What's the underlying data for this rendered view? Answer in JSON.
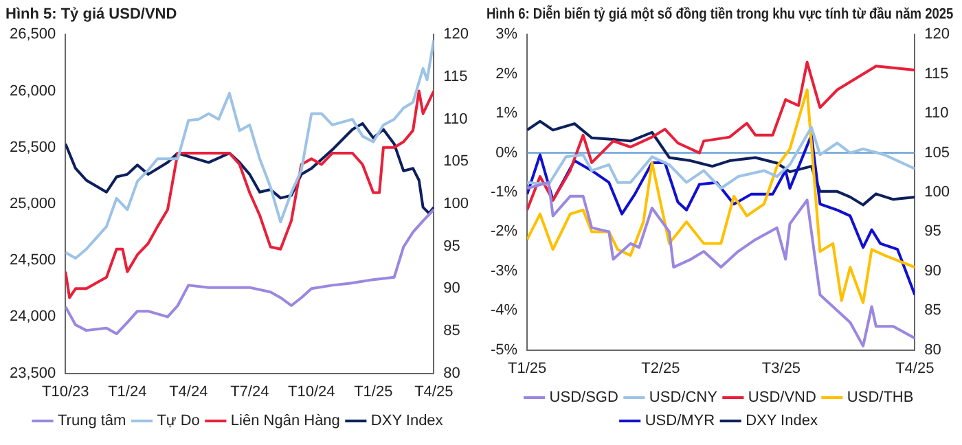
{
  "chart_data": [
    {
      "type": "line",
      "title": "Hình 5: Tỷ giá USD/VND",
      "legend": "bottom",
      "xlim": [
        "2023-10",
        "2025-04"
      ],
      "xticks": [
        {
          "value": "2023-10",
          "label": "T10/23"
        },
        {
          "value": "2024-01",
          "label": "T1/24"
        },
        {
          "value": "2024-04",
          "label": "T4/24"
        },
        {
          "value": "2024-07",
          "label": "T7/24"
        },
        {
          "value": "2024-10",
          "label": "T10/24"
        },
        {
          "value": "2025-01",
          "label": "T1/25"
        },
        {
          "value": "2025-04",
          "label": "T4/25"
        }
      ],
      "ylim": [
        23500,
        26500
      ],
      "yticks": [
        {
          "value": 23500,
          "label": "23,500"
        },
        {
          "value": 24000,
          "label": "24,000"
        },
        {
          "value": 24500,
          "label": "24,500"
        },
        {
          "value": 25000,
          "label": "25,000"
        },
        {
          "value": 25500,
          "label": "25,500"
        },
        {
          "value": 26000,
          "label": "26,000"
        },
        {
          "value": 26500,
          "label": "26,500"
        }
      ],
      "y2lim": [
        80,
        120
      ],
      "y2ticks": [
        80,
        85,
        90,
        95,
        100,
        105,
        110,
        115,
        120
      ],
      "series": [
        {
          "name": "Trung tâm",
          "color": "#9b87e0",
          "x": [
            "2023-10-01",
            "2023-10-16",
            "2023-11-01",
            "2023-12-01",
            "2023-12-16",
            "2024-01-01",
            "2024-01-16",
            "2024-02-01",
            "2024-03-01",
            "2024-03-16",
            "2024-04-01",
            "2024-05-01",
            "2024-06-01",
            "2024-07-01",
            "2024-08-01",
            "2024-08-16",
            "2024-09-01",
            "2024-09-16",
            "2024-10-01",
            "2024-11-01",
            "2024-12-01",
            "2025-01-01",
            "2025-02-01",
            "2025-02-15",
            "2025-03-01",
            "2025-03-16",
            "2025-04-01"
          ],
          "values": [
            24090,
            23930,
            23880,
            23900,
            23850,
            23950,
            24050,
            24050,
            24000,
            24100,
            24280,
            24260,
            24260,
            24260,
            24220,
            24170,
            24100,
            24170,
            24250,
            24280,
            24300,
            24330,
            24350,
            24620,
            24750,
            24850,
            24950
          ]
        },
        {
          "name": "Tự Do",
          "color": "#9dc3e6",
          "x": [
            "2023-10-01",
            "2023-10-07",
            "2023-10-16",
            "2023-11-01",
            "2023-11-16",
            "2023-12-01",
            "2023-12-16",
            "2024-01-01",
            "2024-01-16",
            "2024-02-01",
            "2024-02-15",
            "2024-03-16",
            "2024-04-01",
            "2024-04-16",
            "2024-05-01",
            "2024-05-16",
            "2024-06-01",
            "2024-06-16",
            "2024-07-01",
            "2024-07-16",
            "2024-08-01",
            "2024-08-16",
            "2024-09-01",
            "2024-09-16",
            "2024-10-01",
            "2024-10-16",
            "2024-11-01",
            "2024-12-01",
            "2024-12-16",
            "2025-01-01",
            "2025-01-16",
            "2025-02-01",
            "2025-02-15",
            "2025-03-01",
            "2025-03-16",
            "2025-03-22",
            "2025-04-01"
          ],
          "values": [
            24570,
            24550,
            24520,
            24600,
            24700,
            24800,
            25050,
            24950,
            25200,
            25300,
            25400,
            25400,
            25740,
            25750,
            25800,
            25750,
            25980,
            25650,
            25700,
            25400,
            25150,
            24840,
            25100,
            25300,
            25800,
            25800,
            25700,
            25750,
            25600,
            25550,
            25700,
            25750,
            25850,
            25900,
            26200,
            26100,
            26450
          ]
        },
        {
          "name": "Liên Ngân Hàng",
          "color": "#e8203a",
          "x": [
            "2023-10-01",
            "2023-10-07",
            "2023-10-16",
            "2023-11-01",
            "2023-11-16",
            "2023-12-01",
            "2023-12-16",
            "2023-12-25",
            "2024-01-01",
            "2024-01-16",
            "2024-02-01",
            "2024-02-15",
            "2024-03-01",
            "2024-03-16",
            "2024-04-01",
            "2024-05-01",
            "2024-06-01",
            "2024-06-16",
            "2024-07-01",
            "2024-07-16",
            "2024-08-01",
            "2024-08-16",
            "2024-09-01",
            "2024-09-16",
            "2024-10-01",
            "2024-10-16",
            "2024-11-01",
            "2024-12-01",
            "2024-12-16",
            "2025-01-01",
            "2025-01-10",
            "2025-01-16",
            "2025-02-01",
            "2025-02-15",
            "2025-03-01",
            "2025-03-10",
            "2025-03-16",
            "2025-04-01"
          ],
          "values": [
            24400,
            24170,
            24250,
            24250,
            24300,
            24350,
            24600,
            24600,
            24400,
            24550,
            24650,
            24800,
            24950,
            25450,
            25450,
            25450,
            25450,
            25350,
            25100,
            24900,
            24620,
            24600,
            24850,
            25350,
            25400,
            25350,
            25450,
            25450,
            25350,
            25100,
            25100,
            25500,
            25500,
            25550,
            25650,
            26000,
            25800,
            26000
          ]
        },
        {
          "name": "DXY Index",
          "color": "#0d1f5c",
          "axis": "y2",
          "x": [
            "2023-10-01",
            "2023-10-16",
            "2023-11-01",
            "2023-12-01",
            "2023-12-16",
            "2024-01-01",
            "2024-01-16",
            "2024-02-01",
            "2024-03-01",
            "2024-03-16",
            "2024-04-01",
            "2024-05-01",
            "2024-06-01",
            "2024-06-16",
            "2024-07-01",
            "2024-07-16",
            "2024-08-01",
            "2024-08-16",
            "2024-09-01",
            "2024-09-16",
            "2024-10-01",
            "2024-11-01",
            "2024-12-01",
            "2024-12-16",
            "2025-01-01",
            "2025-01-16",
            "2025-02-01",
            "2025-02-15",
            "2025-03-01",
            "2025-03-10",
            "2025-03-16",
            "2025-03-25",
            "2025-04-01"
          ],
          "values": [
            107.1,
            104.2,
            102.8,
            101.4,
            103.2,
            103.5,
            104.6,
            103.5,
            104.9,
            106,
            105.6,
            104.9,
            106,
            104.9,
            103.5,
            101.4,
            101.7,
            100.7,
            101,
            103.5,
            104.2,
            106.4,
            108.8,
            109.5,
            107.8,
            108.8,
            107.1,
            103.9,
            104.2,
            102.8,
            99.6,
            98.9,
            99.6
          ]
        }
      ]
    },
    {
      "type": "line",
      "title": "Hình 6: Diễn biến tỷ giá một số đồng tiền trong khu vực tính từ đầu năm 2025",
      "legend": "bottom",
      "xlim": [
        "2025-01",
        "2025-04"
      ],
      "xticks": [
        {
          "value": "2025-01",
          "label": "T1/25"
        },
        {
          "value": "2025-02",
          "label": "T2/25"
        },
        {
          "value": "2025-03",
          "label": "T3/25"
        },
        {
          "value": "2025-04",
          "label": "T4/25"
        }
      ],
      "ylim": [
        -5,
        3
      ],
      "yticks": [
        {
          "value": -5,
          "label": "-5%"
        },
        {
          "value": -4,
          "label": "-4%"
        },
        {
          "value": -3,
          "label": "-3%"
        },
        {
          "value": -2,
          "label": "-2%"
        },
        {
          "value": -1,
          "label": "-1%"
        },
        {
          "value": 0,
          "label": "0%"
        },
        {
          "value": 1,
          "label": "1%"
        },
        {
          "value": 2,
          "label": "2%"
        },
        {
          "value": 3,
          "label": "3%"
        }
      ],
      "y2lim": [
        80,
        120
      ],
      "y2ticks": [
        80,
        85,
        90,
        95,
        100,
        105,
        110,
        115,
        120
      ],
      "ref_lines": [
        {
          "axis": "y",
          "value": 0,
          "color": "#5b9bd5"
        }
      ],
      "series": [
        {
          "name": "USD/SGD",
          "color": "#9b87e0",
          "x": [
            "2025-01-01",
            "2025-01-06",
            "2025-01-07",
            "2025-01-11",
            "2025-01-14",
            "2025-01-16",
            "2025-01-20",
            "2025-01-21",
            "2025-01-25",
            "2025-01-27",
            "2025-01-30",
            "2025-02-03",
            "2025-02-04",
            "2025-02-08",
            "2025-02-11",
            "2025-02-15",
            "2025-02-19",
            "2025-02-23",
            "2025-02-28",
            "2025-03-02",
            "2025-03-03",
            "2025-03-07",
            "2025-03-10",
            "2025-03-14",
            "2025-03-17",
            "2025-03-20",
            "2025-03-22",
            "2025-03-23",
            "2025-03-27",
            "2025-04-01"
          ],
          "values": [
            -0.9,
            -0.75,
            -1.6,
            -1.1,
            -1.1,
            -1.9,
            -2.0,
            -2.7,
            -2.3,
            -2.4,
            -1.4,
            -2.0,
            -2.9,
            -2.7,
            -2.5,
            -2.9,
            -2.5,
            -2.2,
            -1.9,
            -2.7,
            -1.8,
            -1.2,
            -3.6,
            -4.0,
            -4.3,
            -4.9,
            -3.9,
            -4.4,
            -4.4,
            -4.7
          ]
        },
        {
          "name": "USD/CNY",
          "color": "#9dc3e6",
          "x": [
            "2025-01-01",
            "2025-01-06",
            "2025-01-10",
            "2025-01-14",
            "2025-01-16",
            "2025-01-20",
            "2025-01-22",
            "2025-01-25",
            "2025-01-30",
            "2025-02-03",
            "2025-02-07",
            "2025-02-11",
            "2025-02-15",
            "2025-02-19",
            "2025-02-25",
            "2025-02-28",
            "2025-03-03",
            "2025-03-08",
            "2025-03-10",
            "2025-03-14",
            "2025-03-17",
            "2025-03-20",
            "2025-03-25",
            "2025-04-01"
          ],
          "values": [
            -0.75,
            -0.8,
            -0.1,
            -0.05,
            -0.45,
            -0.3,
            -0.75,
            -0.75,
            -0.1,
            -0.3,
            -0.75,
            -0.45,
            -0.9,
            -0.6,
            -0.45,
            -0.6,
            -0.3,
            0.65,
            -0.05,
            0.25,
            0,
            0.1,
            -0.05,
            -0.4
          ]
        },
        {
          "name": "USD/VND",
          "color": "#e8203a",
          "x": [
            "2025-01-01",
            "2025-01-04",
            "2025-01-07",
            "2025-01-11",
            "2025-01-14",
            "2025-01-16",
            "2025-01-21",
            "2025-01-25",
            "2025-01-30",
            "2025-02-02",
            "2025-02-05",
            "2025-02-10",
            "2025-02-11",
            "2025-02-17",
            "2025-02-21",
            "2025-02-23",
            "2025-02-27",
            "2025-03-02",
            "2025-03-05",
            "2025-03-07",
            "2025-03-10",
            "2025-03-14",
            "2025-03-17",
            "2025-03-23",
            "2025-04-01"
          ],
          "values": [
            -1.45,
            -0.6,
            -1.2,
            -0.45,
            0.45,
            -0.25,
            0.3,
            0.15,
            0.4,
            0.6,
            0.25,
            0,
            0.3,
            0.4,
            0.75,
            0.45,
            0.45,
            1.35,
            1.2,
            2.3,
            1.15,
            1.6,
            1.8,
            2.2,
            2.1
          ]
        },
        {
          "name": "USD/THB",
          "color": "#ffc000",
          "x": [
            "2025-01-01",
            "2025-01-04",
            "2025-01-07",
            "2025-01-11",
            "2025-01-14",
            "2025-01-16",
            "2025-01-20",
            "2025-01-22",
            "2025-01-25",
            "2025-01-28",
            "2025-01-30",
            "2025-02-03",
            "2025-02-07",
            "2025-02-11",
            "2025-02-15",
            "2025-02-18",
            "2025-02-21",
            "2025-02-25",
            "2025-02-28",
            "2025-03-03",
            "2025-03-07",
            "2025-03-10",
            "2025-03-13",
            "2025-03-15",
            "2025-03-17",
            "2025-03-20",
            "2025-03-22",
            "2025-03-25",
            "2025-04-01"
          ],
          "values": [
            -2.2,
            -1.55,
            -2.45,
            -1.55,
            -1.45,
            -2.0,
            -2.0,
            -2.45,
            -2.6,
            -1.75,
            -0.25,
            -2.3,
            -1.75,
            -2.3,
            -2.3,
            -1.1,
            -1.6,
            -1.3,
            -0.35,
            0.1,
            1.6,
            -2.5,
            -2.3,
            -3.75,
            -2.9,
            -3.8,
            -2.45,
            -2.6,
            -2.9
          ]
        },
        {
          "name": "USD/MYR",
          "color": "#1010d0",
          "x": [
            "2025-01-01",
            "2025-01-04",
            "2025-01-07",
            "2025-01-12",
            "2025-01-16",
            "2025-01-20",
            "2025-01-23",
            "2025-01-26",
            "2025-01-30",
            "2025-02-02",
            "2025-02-05",
            "2025-02-07",
            "2025-02-10",
            "2025-02-14",
            "2025-02-18",
            "2025-02-22",
            "2025-02-27",
            "2025-03-02",
            "2025-03-03",
            "2025-03-08",
            "2025-03-10",
            "2025-03-14",
            "2025-03-17",
            "2025-03-20",
            "2025-03-22",
            "2025-03-24",
            "2025-03-28",
            "2025-04-01"
          ],
          "values": [
            -1.05,
            -0.05,
            -1.2,
            -0.2,
            -0.45,
            -0.75,
            -1.55,
            -1.05,
            -0.25,
            -0.25,
            -1.25,
            -1.45,
            -0.8,
            -0.75,
            -1.3,
            -1.05,
            -1.05,
            -0.45,
            -0.9,
            0.45,
            -1.3,
            -1.45,
            -1.6,
            -2.4,
            -1.95,
            -2.3,
            -2.45,
            -3.6
          ]
        },
        {
          "name": "DXY Index",
          "color": "#0d1f5c",
          "axis": "y2",
          "x": [
            "2025-01-01",
            "2025-01-04",
            "2025-01-07",
            "2025-01-12",
            "2025-01-16",
            "2025-01-21",
            "2025-01-25",
            "2025-01-30",
            "2025-02-03",
            "2025-02-08",
            "2025-02-13",
            "2025-02-17",
            "2025-02-23",
            "2025-02-28",
            "2025-03-03",
            "2025-03-08",
            "2025-03-10",
            "2025-03-14",
            "2025-03-17",
            "2025-03-20",
            "2025-03-23",
            "2025-03-27",
            "2025-04-01"
          ],
          "values": [
            107.9,
            109.0,
            107.9,
            108.7,
            106.9,
            106.7,
            106.5,
            107.6,
            104.4,
            104.0,
            103.3,
            104.0,
            104.4,
            103.7,
            102.6,
            103.3,
            100.1,
            100.1,
            99.4,
            98.4,
            99.8,
            99.1,
            99.4
          ]
        }
      ]
    }
  ]
}
